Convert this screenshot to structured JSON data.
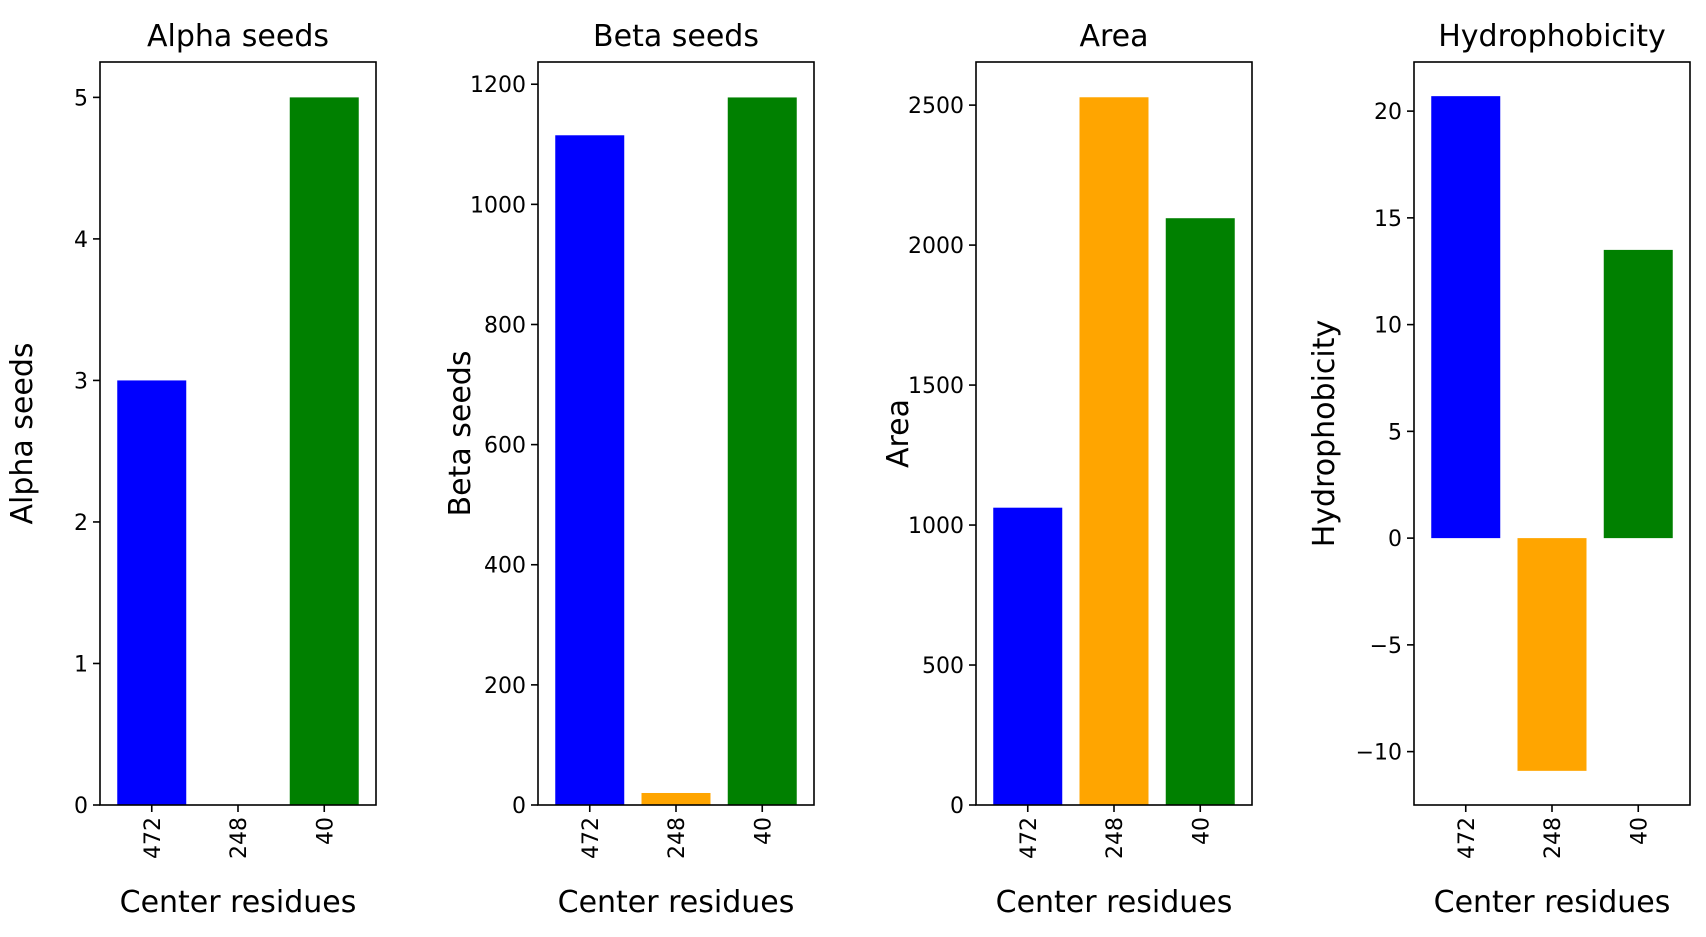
{
  "chart_data": [
    {
      "type": "bar",
      "title": "Alpha seeds",
      "xlabel": "Center residues",
      "ylabel": "Alpha seeds",
      "categories": [
        "472",
        "248",
        "40"
      ],
      "values": [
        3,
        0,
        5
      ],
      "colors": [
        "#0000ff",
        "#ffa500",
        "#008000"
      ],
      "ylim": [
        0,
        5.25
      ],
      "yticks": [
        0,
        1,
        2,
        3,
        4,
        5
      ],
      "ytick_labels": [
        "0",
        "1",
        "2",
        "3",
        "4",
        "5"
      ],
      "grid": false,
      "legend": "none"
    },
    {
      "type": "bar",
      "title": "Beta seeds",
      "xlabel": "Center residues",
      "ylabel": "Beta seeds",
      "categories": [
        "472",
        "248",
        "40"
      ],
      "values": [
        1115,
        20,
        1178
      ],
      "colors": [
        "#0000ff",
        "#ffa500",
        "#008000"
      ],
      "ylim": [
        0,
        1237
      ],
      "yticks": [
        0,
        200,
        400,
        600,
        800,
        1000,
        1200
      ],
      "ytick_labels": [
        "0",
        "200",
        "400",
        "600",
        "800",
        "1000",
        "1200"
      ],
      "grid": false,
      "legend": "none"
    },
    {
      "type": "bar",
      "title": "Area",
      "xlabel": "Center residues",
      "ylabel": "Area",
      "categories": [
        "472",
        "248",
        "40"
      ],
      "values": [
        1062,
        2528,
        2096
      ],
      "colors": [
        "#0000ff",
        "#ffa500",
        "#008000"
      ],
      "ylim": [
        0,
        2654
      ],
      "yticks": [
        0,
        500,
        1000,
        1500,
        2000,
        2500
      ],
      "ytick_labels": [
        "0",
        "500",
        "1000",
        "1500",
        "2000",
        "2500"
      ],
      "grid": false,
      "legend": "none"
    },
    {
      "type": "bar",
      "title": "Hydrophobicity",
      "xlabel": "Center residues",
      "ylabel": "Hydrophobicity",
      "categories": [
        "472",
        "248",
        "40"
      ],
      "values": [
        20.7,
        -10.9,
        13.5
      ],
      "colors": [
        "#0000ff",
        "#ffa500",
        "#008000"
      ],
      "ylim": [
        -12.5,
        22.3
      ],
      "yticks": [
        -10,
        -5,
        0,
        5,
        10,
        15,
        20
      ],
      "ytick_labels": [
        "−10",
        "−5",
        "0",
        "5",
        "10",
        "15",
        "20"
      ],
      "grid": false,
      "legend": "none"
    }
  ]
}
